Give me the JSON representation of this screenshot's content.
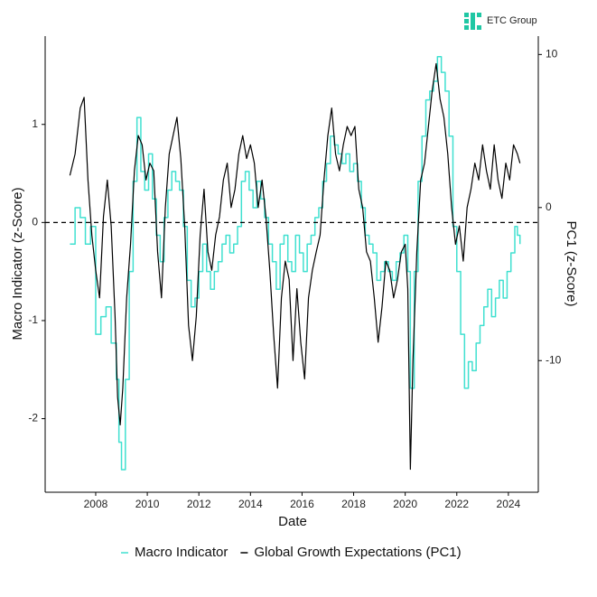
{
  "logo": "ETC Group",
  "chart_data": {
    "type": "line",
    "xlabel": "Date",
    "ylabel": "Macro Indicator (z-Score)",
    "y2label": "PC1 (z-Score)",
    "xlim": [
      2006.04,
      2025.16
    ],
    "xticks": [
      2008,
      2010,
      2012,
      2014,
      2016,
      2018,
      2020,
      2022,
      2024
    ],
    "ylim": [
      -2.75,
      1.9
    ],
    "yticks": [
      -2,
      -1,
      0,
      1
    ],
    "y2lim": [
      -18.6,
      11.2
    ],
    "y2ticks": [
      -10,
      0,
      10
    ],
    "hline": 0,
    "legend": "bottom",
    "series": [
      {
        "name": "Macro Indicator",
        "color": "#40e0d0",
        "step": true,
        "x": [
          2007.0,
          2007.2,
          2007.4,
          2007.6,
          2007.8,
          2008.0,
          2008.2,
          2008.4,
          2008.6,
          2008.8,
          2008.9,
          2009.0,
          2009.15,
          2009.3,
          2009.45,
          2009.6,
          2009.75,
          2009.9,
          2010.05,
          2010.2,
          2010.35,
          2010.5,
          2010.65,
          2010.8,
          2010.95,
          2011.1,
          2011.25,
          2011.4,
          2011.55,
          2011.7,
          2011.85,
          2012.0,
          2012.15,
          2012.3,
          2012.45,
          2012.6,
          2012.75,
          2012.9,
          2013.05,
          2013.2,
          2013.35,
          2013.5,
          2013.65,
          2013.8,
          2013.95,
          2014.1,
          2014.25,
          2014.4,
          2014.55,
          2014.7,
          2014.85,
          2015.0,
          2015.15,
          2015.3,
          2015.45,
          2015.6,
          2015.75,
          2015.9,
          2016.05,
          2016.2,
          2016.35,
          2016.5,
          2016.65,
          2016.8,
          2016.95,
          2017.1,
          2017.25,
          2017.4,
          2017.55,
          2017.7,
          2017.85,
          2018.0,
          2018.15,
          2018.3,
          2018.45,
          2018.6,
          2018.75,
          2018.9,
          2019.05,
          2019.2,
          2019.35,
          2019.5,
          2019.65,
          2019.8,
          2019.95,
          2020.1,
          2020.2,
          2020.35,
          2020.5,
          2020.65,
          2020.8,
          2020.95,
          2021.1,
          2021.25,
          2021.4,
          2021.55,
          2021.7,
          2021.85,
          2022.0,
          2022.15,
          2022.3,
          2022.45,
          2022.6,
          2022.75,
          2022.9,
          2023.05,
          2023.2,
          2023.35,
          2023.5,
          2023.65,
          2023.8,
          2023.95,
          2024.1,
          2024.25,
          2024.35,
          2024.45
        ],
        "values": [
          -0.22,
          0.15,
          0.05,
          -0.22,
          -0.04,
          -1.14,
          -0.96,
          -0.86,
          -1.23,
          -1.6,
          -2.24,
          -2.52,
          -1.6,
          -0.5,
          0.42,
          1.07,
          0.52,
          0.33,
          0.7,
          0.24,
          -0.13,
          -0.4,
          0.05,
          0.33,
          0.52,
          0.42,
          0.33,
          -0.04,
          -0.59,
          -0.86,
          -0.77,
          -0.5,
          -0.22,
          -0.5,
          -0.68,
          -0.5,
          -0.4,
          -0.22,
          -0.13,
          -0.31,
          -0.22,
          -0.04,
          0.42,
          0.52,
          0.33,
          0.15,
          0.42,
          0.24,
          0.05,
          -0.22,
          -0.4,
          -0.68,
          -0.22,
          -0.13,
          -0.4,
          -0.5,
          -0.13,
          -0.31,
          -0.5,
          -0.22,
          -0.13,
          0.05,
          0.15,
          0.42,
          0.6,
          0.88,
          0.79,
          0.7,
          0.6,
          0.7,
          0.52,
          0.6,
          0.42,
          0.15,
          -0.13,
          -0.22,
          -0.31,
          -0.59,
          -0.5,
          -0.4,
          -0.5,
          -0.59,
          -0.4,
          -0.31,
          -0.13,
          -0.5,
          -1.69,
          -0.5,
          0.42,
          0.88,
          1.25,
          1.34,
          1.44,
          1.69,
          1.53,
          1.34,
          0.88,
          -0.04,
          -0.5,
          -1.14,
          -1.69,
          -1.42,
          -1.51,
          -1.23,
          -1.05,
          -0.86,
          -0.68,
          -0.96,
          -0.77,
          -0.59,
          -0.77,
          -0.5,
          -0.31,
          -0.04,
          -0.13,
          -0.22
        ]
      },
      {
        "name": "Global Growth Expectations (PC1)",
        "color": "#000000",
        "axis": "y2",
        "x": [
          2007.0,
          2007.2,
          2007.4,
          2007.55,
          2007.7,
          2007.85,
          2008.0,
          2008.15,
          2008.3,
          2008.45,
          2008.6,
          2008.75,
          2008.85,
          2008.95,
          2009.05,
          2009.2,
          2009.35,
          2009.5,
          2009.65,
          2009.8,
          2009.95,
          2010.1,
          2010.25,
          2010.4,
          2010.55,
          2010.7,
          2010.85,
          2011.0,
          2011.15,
          2011.3,
          2011.45,
          2011.6,
          2011.75,
          2011.9,
          2012.05,
          2012.2,
          2012.35,
          2012.5,
          2012.65,
          2012.8,
          2012.95,
          2013.1,
          2013.25,
          2013.4,
          2013.55,
          2013.7,
          2013.85,
          2014.0,
          2014.15,
          2014.3,
          2014.45,
          2014.6,
          2014.75,
          2014.9,
          2015.05,
          2015.2,
          2015.35,
          2015.5,
          2015.65,
          2015.8,
          2015.95,
          2016.1,
          2016.25,
          2016.4,
          2016.55,
          2016.7,
          2016.85,
          2017.0,
          2017.15,
          2017.3,
          2017.45,
          2017.6,
          2017.75,
          2017.9,
          2018.05,
          2018.2,
          2018.35,
          2018.5,
          2018.65,
          2018.8,
          2018.95,
          2019.1,
          2019.25,
          2019.4,
          2019.55,
          2019.7,
          2019.85,
          2020.0,
          2020.1,
          2020.2,
          2020.3,
          2020.45,
          2020.6,
          2020.75,
          2020.9,
          2021.05,
          2021.2,
          2021.35,
          2021.5,
          2021.65,
          2021.8,
          2021.95,
          2022.1,
          2022.25,
          2022.4,
          2022.55,
          2022.7,
          2022.85,
          2023.0,
          2023.15,
          2023.3,
          2023.45,
          2023.6,
          2023.75,
          2023.9,
          2024.05,
          2024.2,
          2024.35,
          2024.45
        ],
        "values": [
          2.1,
          3.5,
          6.5,
          7.2,
          1.8,
          -1.8,
          -4.1,
          -5.9,
          -0.6,
          1.8,
          -1.2,
          -7.1,
          -12.4,
          -14.2,
          -11.8,
          -5.9,
          -2.4,
          2.4,
          4.7,
          4.1,
          1.8,
          2.9,
          2.4,
          -2.9,
          -5.9,
          0,
          3.5,
          4.7,
          5.9,
          3.2,
          -1.2,
          -7.7,
          -10,
          -7.1,
          -1.8,
          1.2,
          -2.9,
          -4.1,
          -1.8,
          -0.6,
          1.8,
          2.9,
          0,
          1.2,
          3.5,
          4.7,
          3.2,
          4.1,
          2.9,
          0,
          1.8,
          -0.6,
          -4.1,
          -8.3,
          -11.8,
          -5.9,
          -3.5,
          -4.7,
          -10,
          -5.3,
          -8.8,
          -11.2,
          -5.9,
          -4.1,
          -2.9,
          -1.8,
          1.8,
          4.7,
          6.5,
          3.5,
          2.4,
          4.1,
          5.3,
          4.7,
          5.3,
          1.2,
          0,
          -2.9,
          -3.5,
          -5.9,
          -8.8,
          -6.5,
          -3.5,
          -4.1,
          -5.9,
          -4.7,
          -2.9,
          -2.4,
          -5.3,
          -17.1,
          -10,
          -2.9,
          1.8,
          2.9,
          5.3,
          7.7,
          9.4,
          7.1,
          5.9,
          3.5,
          0,
          -2.4,
          -1.2,
          -3.5,
          0,
          1.2,
          2.9,
          1.8,
          4.1,
          2.4,
          1.2,
          4.1,
          1.8,
          0.6,
          2.9,
          1.8,
          4.1,
          3.5,
          2.9
        ]
      }
    ]
  }
}
